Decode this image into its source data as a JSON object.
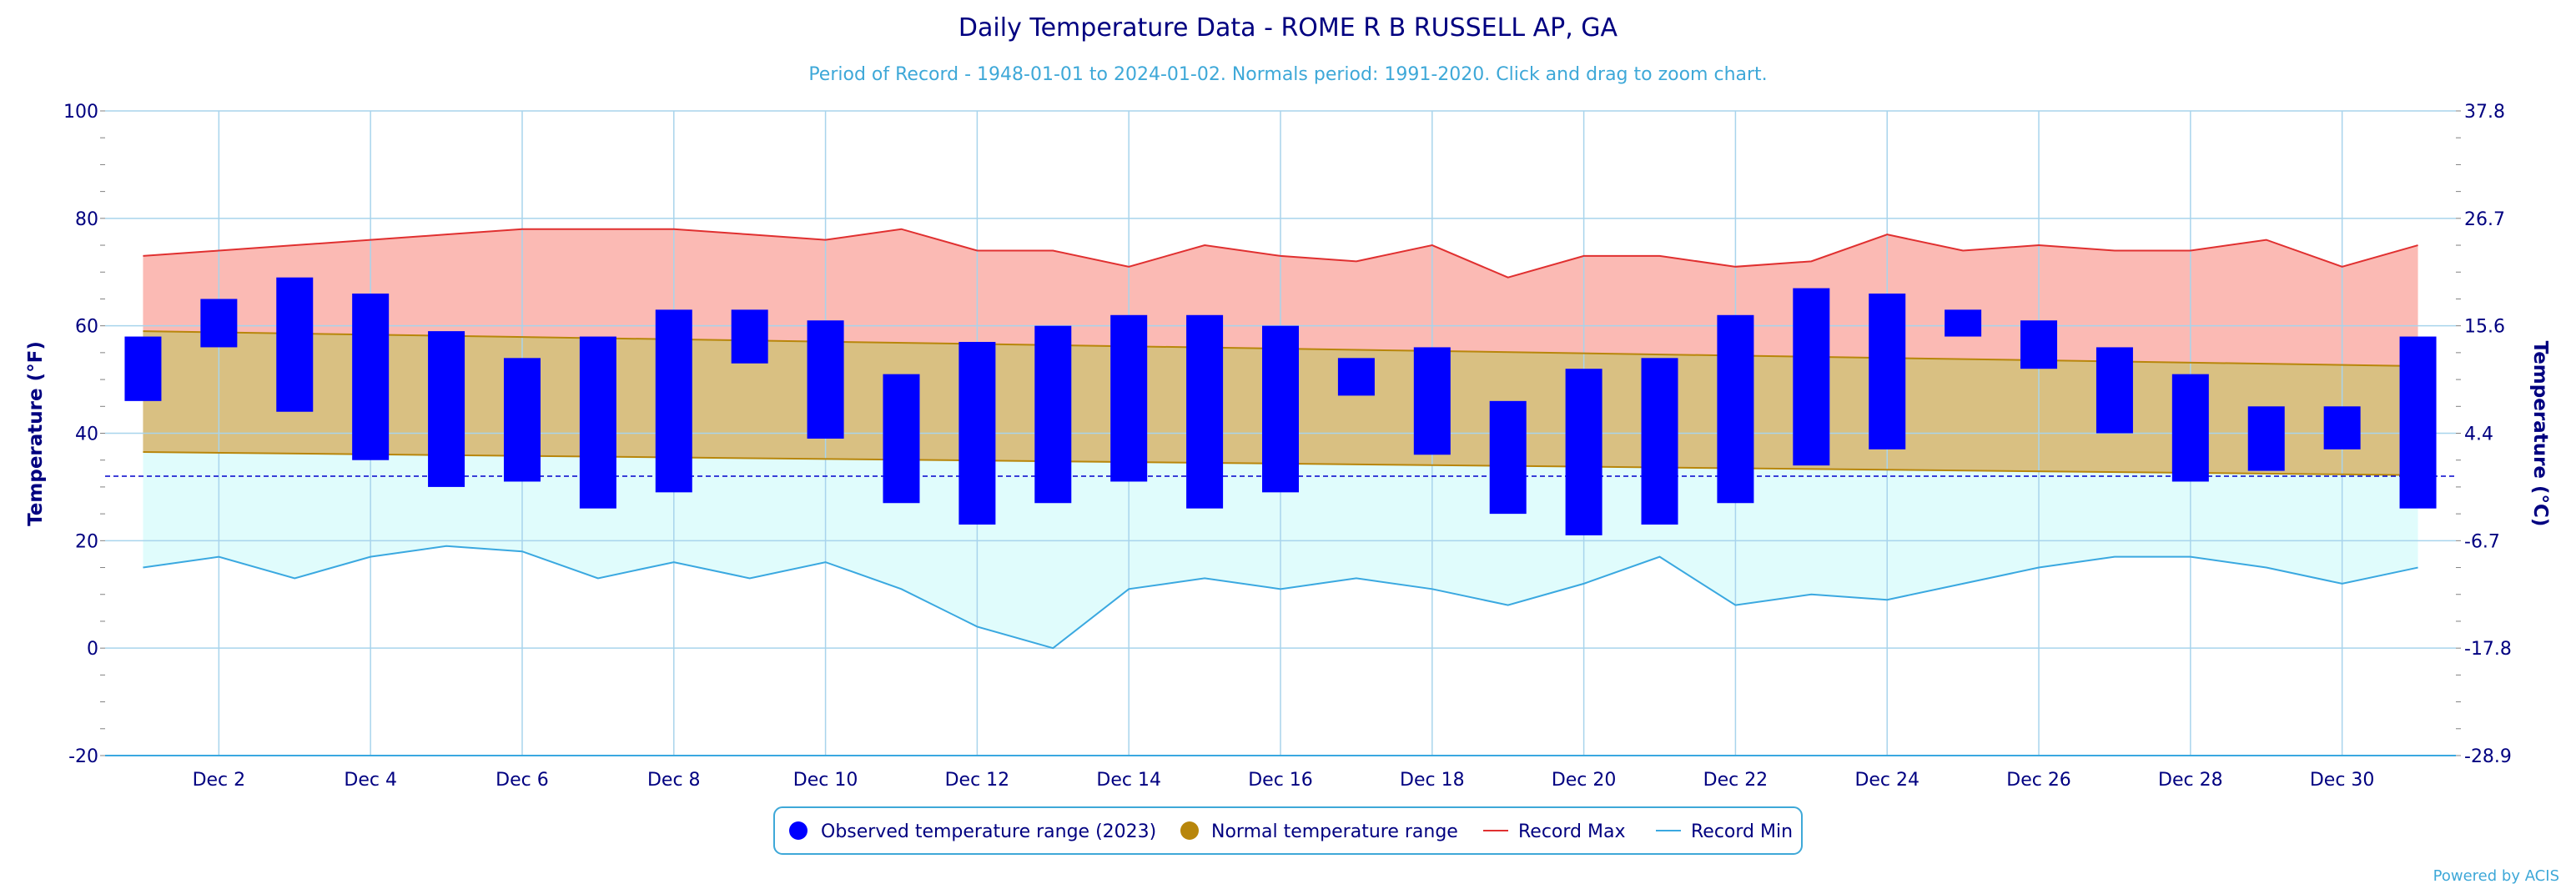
{
  "chart_data": {
    "type": "bar",
    "title": "Daily Temperature Data - ROME R B RUSSELL AP, GA",
    "subtitle": "Period of Record - 1948-01-01 to 2024-01-02. Normals period: 1991-2020. Click and drag to zoom chart.",
    "ylabel": "Temperature (°F)",
    "ylabel_right": "Temperature (°C)",
    "ylim": [
      -20,
      100
    ],
    "y_ticks": [
      -20,
      0,
      20,
      40,
      60,
      80,
      100
    ],
    "y_ticks_right": [
      "-28.9",
      "-17.8",
      "-6.7",
      "4.4",
      "15.6",
      "26.7",
      "37.8"
    ],
    "x_day_range": [
      1,
      31
    ],
    "x_tick_labels": [
      "Dec 2",
      "Dec 4",
      "Dec 6",
      "Dec 8",
      "Dec 10",
      "Dec 12",
      "Dec 14",
      "Dec 16",
      "Dec 18",
      "Dec 20",
      "Dec 22",
      "Dec 24",
      "Dec 26",
      "Dec 28",
      "Dec 30"
    ],
    "x_tick_days": [
      2,
      4,
      6,
      8,
      10,
      12,
      14,
      16,
      18,
      20,
      22,
      24,
      26,
      28,
      30
    ],
    "freezing_line": 32,
    "grid": true,
    "legend_placement": "bottom-center",
    "colors": {
      "observed": "#0000ff",
      "normal_band": "#d9c082",
      "normal_line": "#b8860b",
      "normal_legend": "#b8860b",
      "record_max_line": "#e03030",
      "record_max_fill": "#fbbab4",
      "record_min_line": "#3aa8e0",
      "record_min_fill": "#e0fcfc",
      "freezing_line": "#0000cc",
      "grid": "#a8d4ec",
      "text": "#000080"
    },
    "series": [
      {
        "name": "Observed temperature range (2023)",
        "days": [
          1,
          2,
          3,
          4,
          5,
          6,
          7,
          8,
          9,
          10,
          11,
          12,
          13,
          14,
          15,
          16,
          17,
          18,
          19,
          20,
          21,
          22,
          23,
          24,
          25,
          26,
          27,
          28,
          29,
          30,
          31
        ],
        "high": [
          58,
          65,
          69,
          66,
          59,
          54,
          58,
          63,
          63,
          61,
          51,
          57,
          60,
          62,
          62,
          60,
          54,
          56,
          46,
          52,
          54,
          62,
          67,
          66,
          63,
          61,
          56,
          51,
          45,
          45,
          58
        ],
        "low": [
          46,
          56,
          44,
          35,
          30,
          31,
          26,
          29,
          53,
          39,
          27,
          23,
          27,
          31,
          26,
          29,
          47,
          36,
          25,
          21,
          23,
          27,
          34,
          37,
          58,
          52,
          40,
          31,
          33,
          37,
          26
        ]
      },
      {
        "name": "Normal temperature range",
        "days": [
          1,
          31
        ],
        "high": [
          59,
          52.5
        ],
        "low": [
          36.5,
          32.2
        ]
      },
      {
        "name": "Record Max",
        "days": [
          1,
          2,
          3,
          4,
          5,
          6,
          7,
          8,
          9,
          10,
          11,
          12,
          13,
          14,
          15,
          16,
          17,
          18,
          19,
          20,
          21,
          22,
          23,
          24,
          25,
          26,
          27,
          28,
          29,
          30,
          31
        ],
        "values": [
          73,
          74,
          75,
          76,
          77,
          78,
          78,
          78,
          77,
          76,
          78,
          74,
          74,
          71,
          75,
          73,
          72,
          75,
          69,
          73,
          73,
          71,
          72,
          77,
          74,
          75,
          74,
          74,
          76,
          71,
          75
        ]
      },
      {
        "name": "Record Min",
        "days": [
          1,
          2,
          3,
          4,
          5,
          6,
          7,
          8,
          9,
          10,
          11,
          12,
          13,
          14,
          15,
          16,
          17,
          18,
          19,
          20,
          21,
          22,
          23,
          24,
          25,
          26,
          27,
          28,
          29,
          30,
          31
        ],
        "values": [
          15,
          17,
          13,
          17,
          19,
          18,
          13,
          16,
          13,
          16,
          11,
          4,
          0,
          11,
          13,
          11,
          13,
          11,
          8,
          12,
          17,
          8,
          10,
          9,
          12,
          15,
          17,
          17,
          15,
          12,
          15
        ]
      }
    ]
  },
  "credits": "Powered by ACIS"
}
